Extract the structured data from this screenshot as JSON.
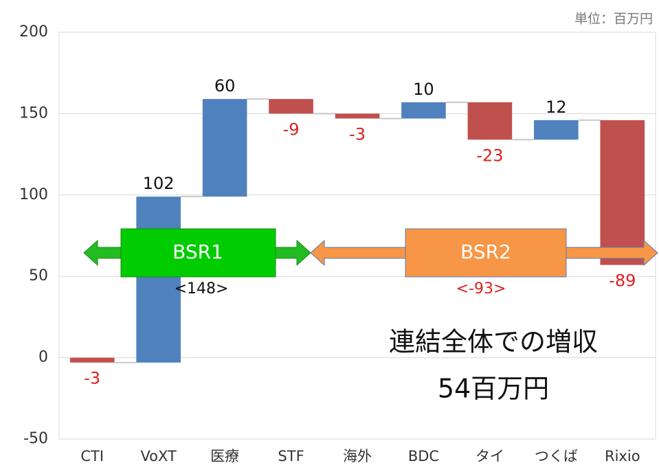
{
  "chart_data": {
    "type": "waterfall",
    "unit_label": "単位：百万円",
    "categories": [
      "CTI",
      "VoXT",
      "医療",
      "STF",
      "海外",
      "BDC",
      "タイ",
      "つくば",
      "Rixio"
    ],
    "values": [
      -3,
      102,
      60,
      -9,
      -3,
      10,
      -23,
      12,
      -89
    ],
    "increase_color": "#4f81bd",
    "decrease_color": "#c0504d",
    "increase_label_color": "#111111",
    "decrease_label_color": "#e02020",
    "ylim": [
      -50,
      200
    ],
    "yticks": [
      -50,
      0,
      50,
      100,
      150,
      200
    ],
    "grid": true,
    "annotations": {
      "bsr1": "BSR1",
      "bsr1_total": "<148>",
      "bsr2": "BSR2",
      "bsr2_total": "<-93>",
      "summary_line1": "連結全体での増収",
      "summary_line2": "54百万円"
    }
  }
}
